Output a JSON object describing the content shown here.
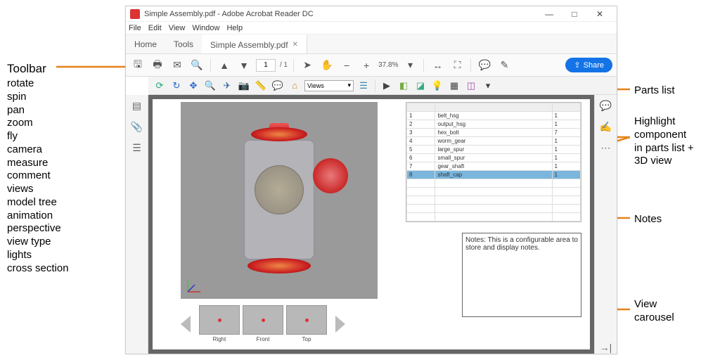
{
  "annotations": {
    "toolbar_title": "Toolbar",
    "toolbar_items": [
      "rotate",
      "spin",
      "pan",
      "zoom",
      "fly",
      "camera",
      "measure",
      "comment",
      "views",
      "model tree",
      "animation",
      "perspective",
      "view type",
      "lights",
      "cross section"
    ],
    "parts_list": "Parts list",
    "highlight": "Highlight component in parts list + 3D view",
    "notes": "Notes",
    "carousel": "View carousel"
  },
  "colors": {
    "arrow": "#e8811a",
    "accent": "#1473e6",
    "highlight_row": "#7ab6dd",
    "red_part": "#c92222"
  },
  "window": {
    "title": "Simple Assembly.pdf - Adobe Acrobat Reader DC",
    "menu": [
      "File",
      "Edit",
      "View",
      "Window",
      "Help"
    ],
    "tabs": {
      "home": "Home",
      "tools": "Tools",
      "doc": "Simple Assembly.pdf"
    },
    "page_current": "1",
    "page_total": "/ 1",
    "zoom": "37.8%",
    "share": "Share"
  },
  "toolbar3d": {
    "views_label": "Views"
  },
  "parts": {
    "cols": [
      "",
      "",
      ""
    ],
    "rows": [
      [
        "1",
        "belt_hsg",
        "1"
      ],
      [
        "2",
        "output_hsg",
        "1"
      ],
      [
        "3",
        "hex_bolt",
        "7"
      ],
      [
        "4",
        "worm_gear",
        "1"
      ],
      [
        "5",
        "large_spur",
        "1"
      ],
      [
        "6",
        "small_spur",
        "1"
      ],
      [
        "7",
        "gear_shaft",
        "1"
      ],
      [
        "8",
        "shaft_cap",
        "1"
      ]
    ],
    "selected_index": 7
  },
  "notes_text": "Notes: This is a configurable area to store and display notes.",
  "carousel": {
    "thumbs": [
      "Right",
      "Front",
      "Top"
    ]
  }
}
